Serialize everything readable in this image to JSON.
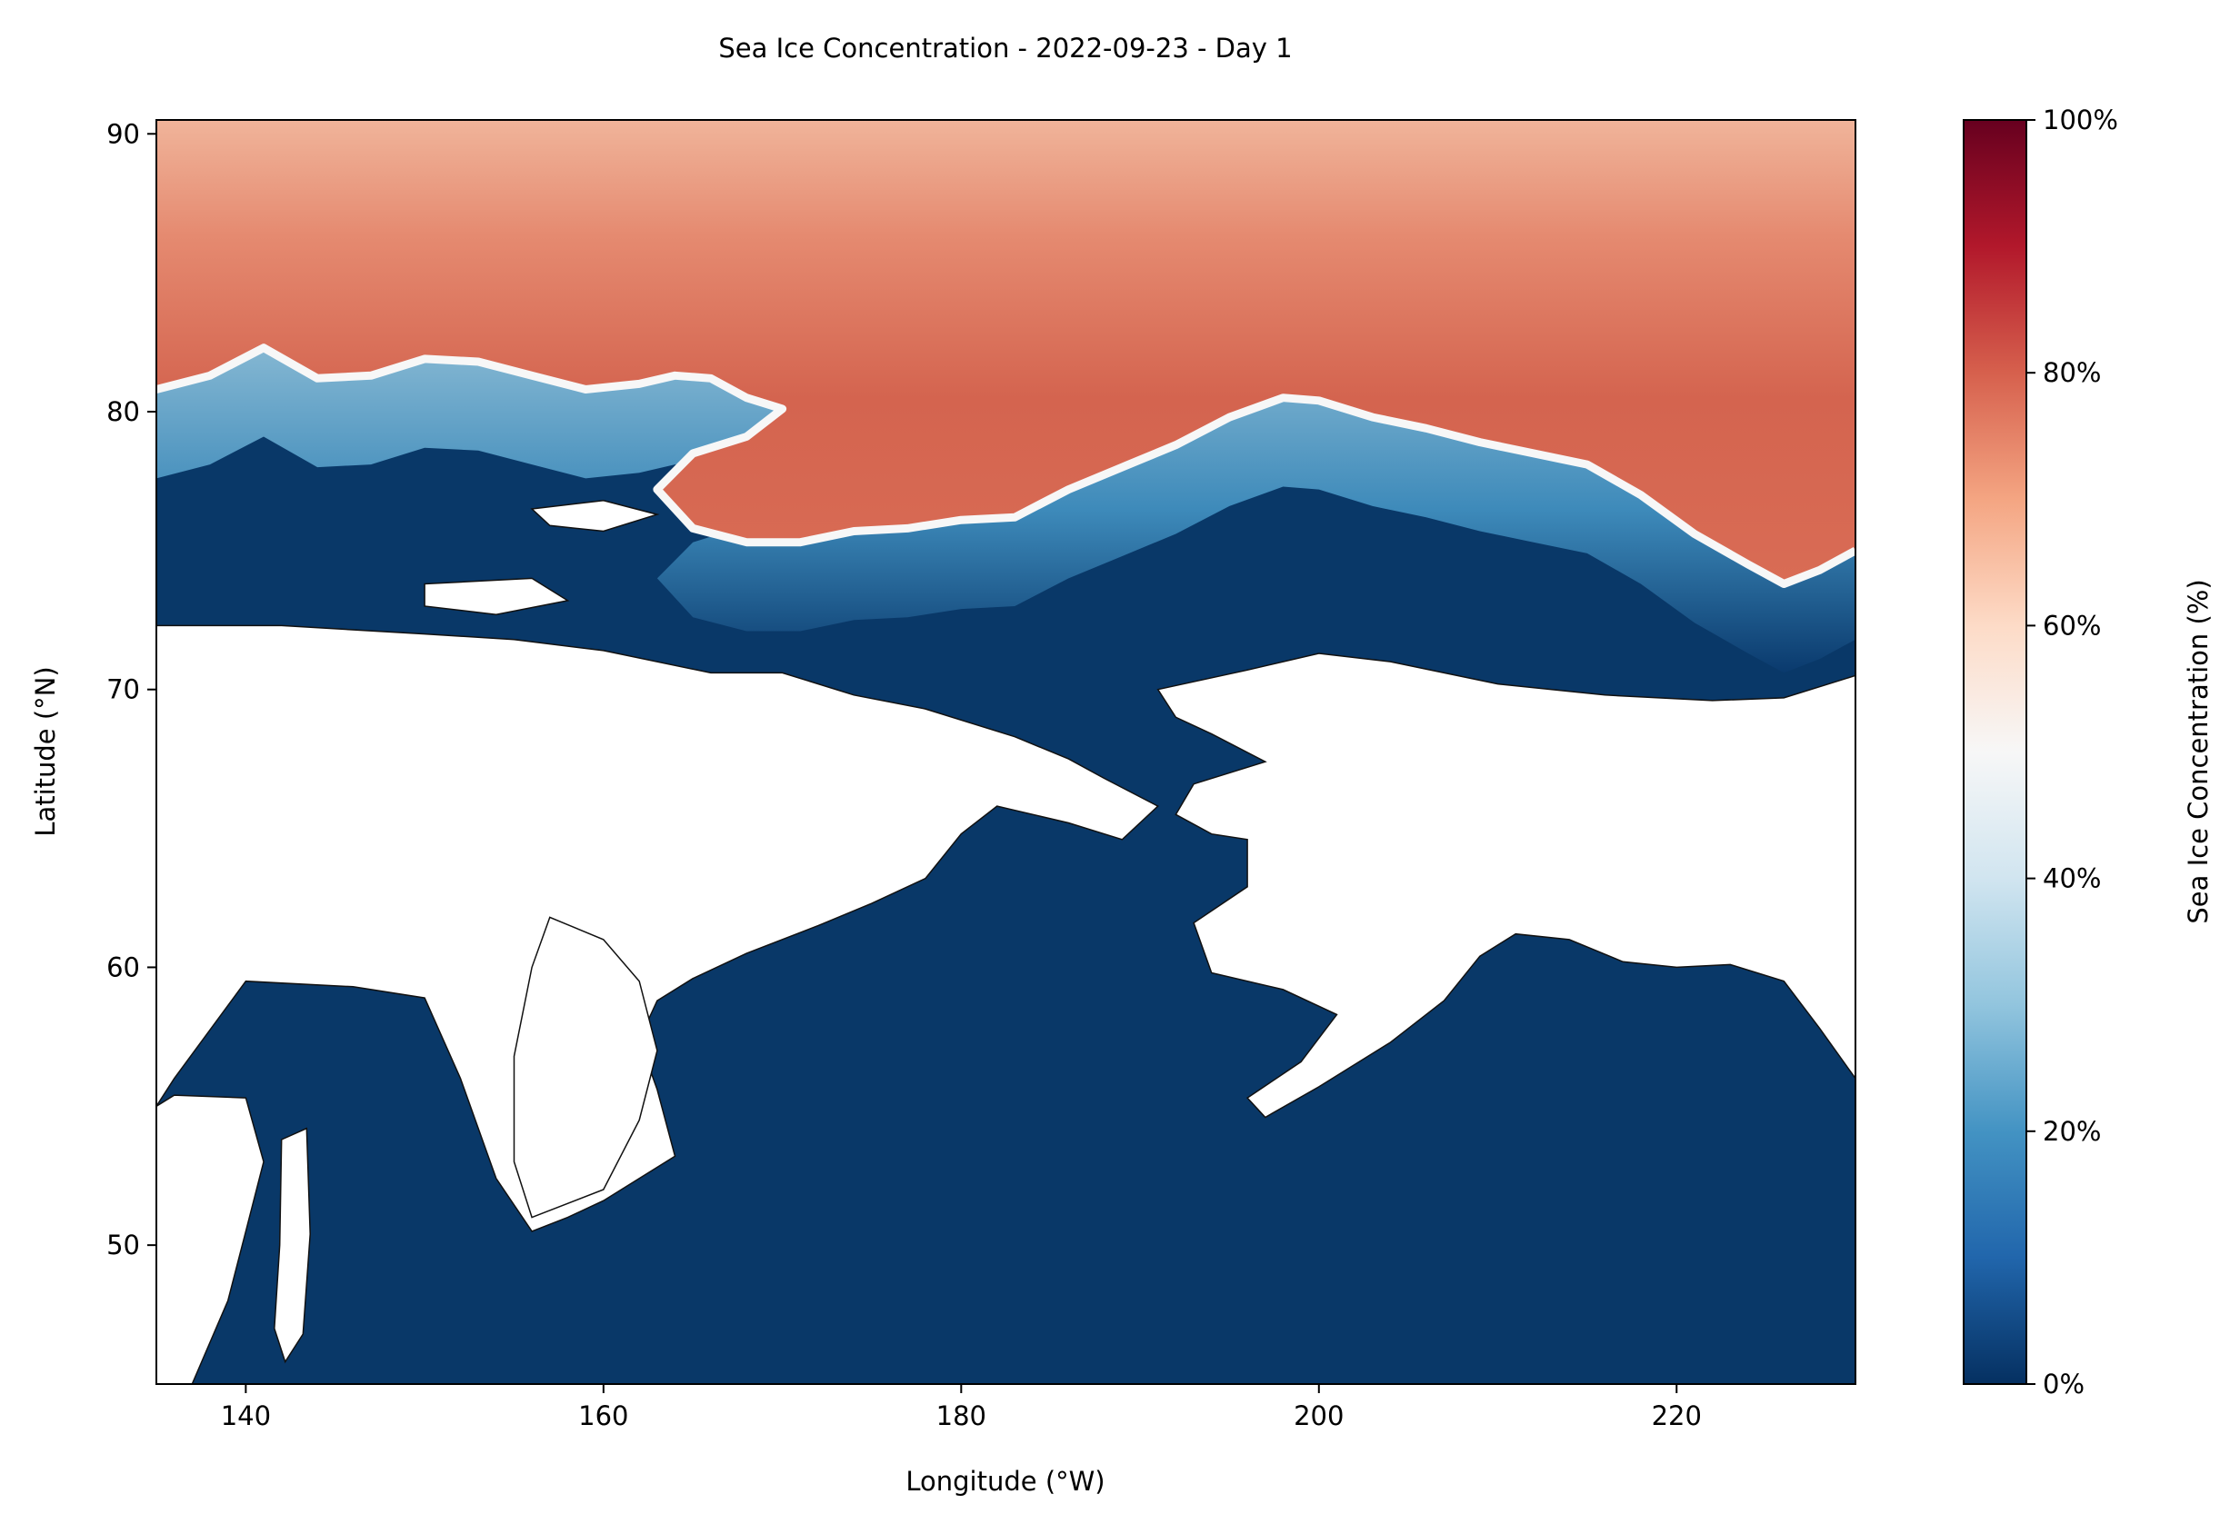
{
  "chart_data": {
    "type": "heatmap",
    "title": "Sea Ice Concentration - 2022-09-23 - Day 1",
    "xlabel": "Longitude (°W)",
    "ylabel": "Latitude (°N)",
    "xlim": [
      135,
      230
    ],
    "ylim": [
      45,
      90.5
    ],
    "x_ticks": [
      140,
      160,
      180,
      200,
      220
    ],
    "x_tick_labels": [
      "140",
      "160",
      "180",
      "200",
      "220"
    ],
    "y_ticks": [
      50,
      60,
      70,
      80,
      90
    ],
    "y_tick_labels": [
      "50",
      "60",
      "70",
      "80",
      "90"
    ],
    "colorbar": {
      "label": "Sea Ice Concentration (%)",
      "range": [
        0,
        100
      ],
      "ticks": [
        0,
        20,
        40,
        60,
        80,
        100
      ],
      "tick_labels": [
        "0%",
        "20%",
        "40%",
        "60%",
        "80%",
        "100%"
      ],
      "colormap": "RdBu_r",
      "stops": [
        "#053061",
        "#2166ac",
        "#4393c3",
        "#92c5de",
        "#d1e5f0",
        "#f7f7f7",
        "#fddbc7",
        "#f4a582",
        "#d6604d",
        "#b2182b",
        "#67001f"
      ]
    },
    "background_color": "#ffffff",
    "ice_edge_latitude_by_longitude": [
      [
        135,
        80.8
      ],
      [
        138,
        81.3
      ],
      [
        141,
        82.3
      ],
      [
        144,
        81.2
      ],
      [
        147,
        81.3
      ],
      [
        150,
        81.9
      ],
      [
        153,
        81.8
      ],
      [
        156,
        81.3
      ],
      [
        159,
        80.8
      ],
      [
        162,
        81.0
      ],
      [
        164,
        81.3
      ],
      [
        166,
        81.2
      ],
      [
        168,
        80.5
      ],
      [
        170,
        80.1
      ],
      [
        168,
        79.1
      ],
      [
        165,
        78.5
      ],
      [
        163,
        77.2
      ],
      [
        165,
        75.8
      ],
      [
        168,
        75.3
      ],
      [
        171,
        75.3
      ],
      [
        174,
        75.7
      ],
      [
        177,
        75.8
      ],
      [
        180,
        76.1
      ],
      [
        183,
        76.2
      ],
      [
        186,
        77.2
      ],
      [
        189,
        78.0
      ],
      [
        192,
        78.8
      ],
      [
        195,
        79.8
      ],
      [
        198,
        80.5
      ],
      [
        200,
        80.4
      ],
      [
        203,
        79.8
      ],
      [
        206,
        79.4
      ],
      [
        209,
        78.9
      ],
      [
        212,
        78.5
      ],
      [
        215,
        78.1
      ],
      [
        218,
        77.0
      ],
      [
        221,
        75.6
      ],
      [
        224,
        74.5
      ],
      [
        226,
        73.8
      ],
      [
        228,
        74.3
      ],
      [
        230,
        75.0
      ]
    ],
    "ice_concentration_scale": {
      "pack_ice_percent": 75,
      "edge_percent": 50,
      "open_water_percent": 0
    }
  }
}
